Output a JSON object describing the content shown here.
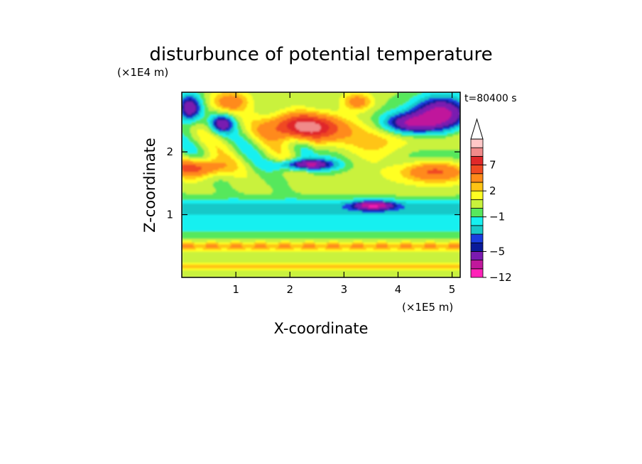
{
  "chart_data": {
    "type": "heatmap",
    "title": "disturbunce of potential temperature",
    "xlabel": "X-coordinate",
    "ylabel": "Z-coordinate",
    "x_unit": "(×1E5 m)",
    "y_unit": "(×1E4 m)",
    "time_label": "t=80400 s",
    "xlim": [
      0,
      5.15
    ],
    "ylim": [
      0,
      2.95
    ],
    "x_ticks": [
      1,
      2,
      3,
      4,
      5
    ],
    "y_ticks": [
      1,
      2
    ],
    "x_tick_labels": [
      "1",
      "2",
      "3",
      "4",
      "5"
    ],
    "y_tick_labels": [
      "1",
      "2"
    ],
    "grid": false,
    "colorbar": {
      "levels": [
        -12,
        -9,
        -7,
        -5,
        -4,
        -3,
        -2,
        -1,
        0,
        1,
        2,
        3,
        5,
        7,
        9,
        11
      ],
      "colors": [
        "#ff22b8",
        "#c0189c",
        "#7a1ab0",
        "#0a1a9a",
        "#1a3ee0",
        "#19c8c8",
        "#16f0f0",
        "#57e85c",
        "#c9f23c",
        "#ffff22",
        "#ffc414",
        "#ff8a1a",
        "#f04a22",
        "#e0282a",
        "#f08a8a",
        "#ffc8c8"
      ],
      "extend": "max",
      "labels": [
        "-12",
        "-5",
        "-1",
        "2",
        "7"
      ],
      "label_levels": [
        -12,
        -5,
        -1,
        2,
        7
      ]
    }
  }
}
